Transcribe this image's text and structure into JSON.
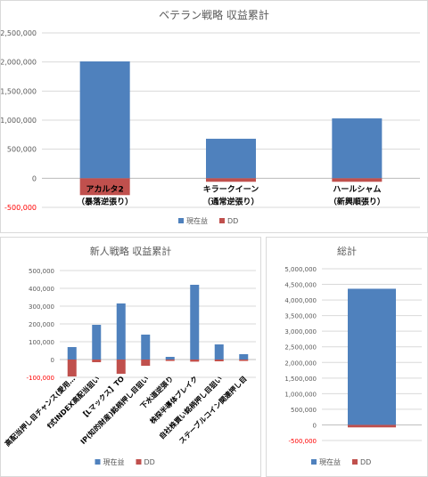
{
  "colors": {
    "current": "#4f81bd",
    "dd": "#c0504d",
    "grid": "#d9d9d9",
    "text": "#595959"
  },
  "chart_data": [
    {
      "id": "veteran",
      "type": "bar",
      "title": "ベテラン戦略 収益累計",
      "categories": [
        "アカルタ2\n（暴落逆張り）",
        "キラークイーン\n（通常逆張り）",
        "ハールシャム\n（新興順張り）"
      ],
      "series": [
        {
          "name": "現在益",
          "values": [
            2010000,
            680000,
            1030000
          ]
        },
        {
          "name": "DD",
          "values": [
            -290000,
            -60000,
            -60000
          ]
        }
      ],
      "ylim": [
        -500000,
        2500000
      ],
      "yticks": [
        "-500,000",
        "0",
        "500,000",
        "1,000,000",
        "1,500,000",
        "2,000,000",
        "2,500,000"
      ],
      "legend": "bottom",
      "grid": true
    },
    {
      "id": "newcomer",
      "type": "bar",
      "title": "新人戦略 収益累計",
      "categories": [
        "高配当押し目チャンス(愛用…",
        "f式INDEX高配当狙い",
        "【Lマックス】TO",
        "IP(知的財産)銘柄押し目狙い",
        "下水道逆張り",
        "株探半導体ブレイク",
        "自社株買い銘柄押し目狙い",
        "ステーブルコイン関連押し目"
      ],
      "series": [
        {
          "name": "現在益",
          "values": [
            70000,
            195000,
            315000,
            140000,
            15000,
            420000,
            85000,
            30000
          ]
        },
        {
          "name": "DD",
          "values": [
            -95000,
            -15000,
            -80000,
            -35000,
            -8000,
            -12000,
            -10000,
            -8000
          ]
        }
      ],
      "ylim": [
        -100000,
        500000
      ],
      "yticks": [
        "-100,000",
        "0",
        "100,000",
        "200,000",
        "300,000",
        "400,000",
        "500,000"
      ],
      "legend": "bottom",
      "grid": true
    },
    {
      "id": "total",
      "type": "bar",
      "title": "総計",
      "categories": [
        ""
      ],
      "series": [
        {
          "name": "現在益",
          "values": [
            4360000
          ]
        },
        {
          "name": "DD",
          "values": [
            -80000
          ]
        }
      ],
      "ylim": [
        -500000,
        5000000
      ],
      "yticks": [
        "-500,000",
        "0",
        "500,000",
        "1,000,000",
        "1,500,000",
        "2,000,000",
        "2,500,000",
        "3,000,000",
        "3,500,000",
        "4,000,000",
        "4,500,000",
        "5,000,000"
      ],
      "legend": "bottom",
      "grid": true
    }
  ]
}
